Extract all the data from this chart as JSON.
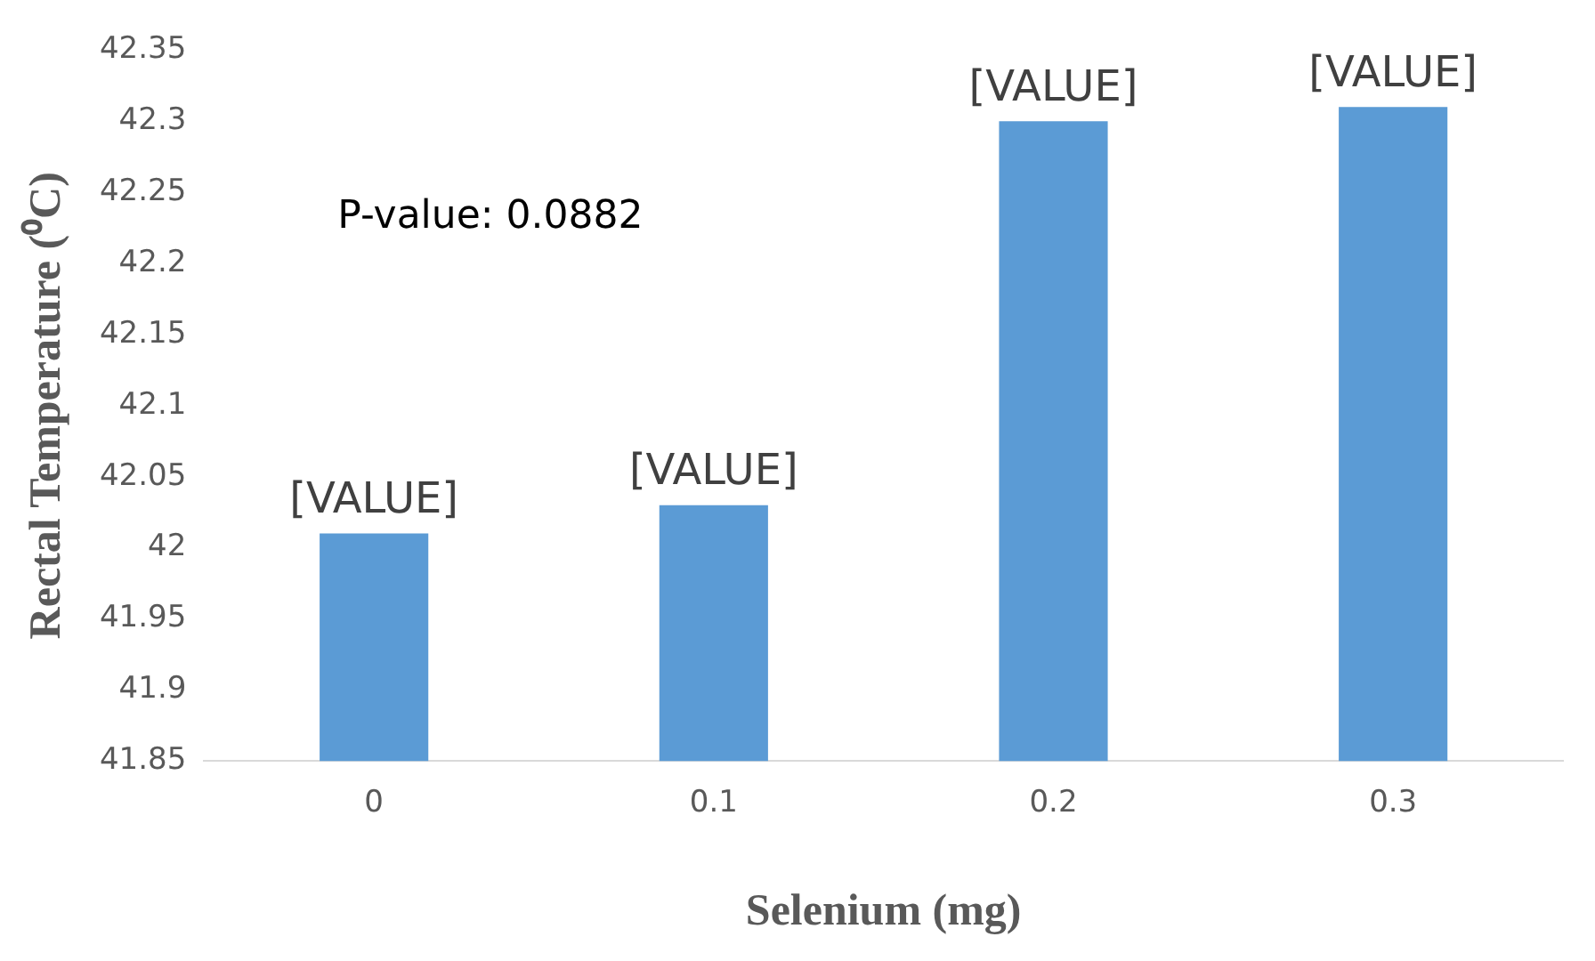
{
  "chart_data": {
    "type": "bar",
    "xlabel": "Selenium (mg)",
    "ylabel": "Rectal Temperature (⁰C)",
    "categories": [
      "0",
      "0.1",
      "0.2",
      "0.3"
    ],
    "values": [
      42.01,
      42.03,
      42.3,
      42.31
    ],
    "color": "#5b9bd5",
    "value_labels": [
      "[VALUE]",
      "[VALUE]",
      "[VALUE]",
      "[VALUE]"
    ],
    "ylim": [
      41.85,
      42.35
    ],
    "yticks": [
      41.85,
      41.9,
      41.95,
      42,
      42.05,
      42.1,
      42.15,
      42.2,
      42.25,
      42.3,
      42.35
    ],
    "grid": false,
    "legend": false,
    "annotations": [
      "P-value: 0.0882"
    ]
  }
}
